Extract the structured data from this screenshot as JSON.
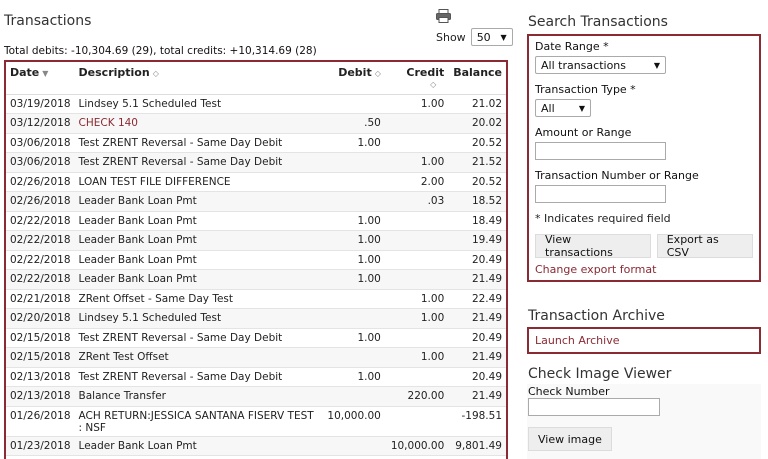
{
  "transactions": {
    "title": "Transactions",
    "show_label": "Show",
    "show_value": "50",
    "totals": "Total debits: -10,304.69 (29), total credits: +10,314.69 (28)",
    "headers": {
      "date": "Date",
      "description": "Description",
      "debit": "Debit",
      "credit": "Credit",
      "balance": "Balance"
    },
    "rows": [
      {
        "date": "03/19/2018",
        "description": "Lindsey 5.1 Scheduled Test",
        "debit": "",
        "credit": "1.00",
        "balance": "21.02"
      },
      {
        "date": "03/12/2018",
        "description": "CHECK 140",
        "debit": ".50",
        "credit": "",
        "balance": "20.02"
      },
      {
        "date": "03/06/2018",
        "description": "Test ZRENT Reversal - Same Day Debit",
        "debit": "1.00",
        "credit": "",
        "balance": "20.52"
      },
      {
        "date": "03/06/2018",
        "description": "Test ZRENT Reversal - Same Day Debit",
        "debit": "",
        "credit": "1.00",
        "balance": "21.52"
      },
      {
        "date": "02/26/2018",
        "description": "LOAN TEST FILE DIFFERENCE",
        "debit": "",
        "credit": "2.00",
        "balance": "20.52"
      },
      {
        "date": "02/26/2018",
        "description": "Leader Bank Loan Pmt",
        "debit": "",
        "credit": ".03",
        "balance": "18.52"
      },
      {
        "date": "02/22/2018",
        "description": "Leader Bank Loan Pmt",
        "debit": "1.00",
        "credit": "",
        "balance": "18.49"
      },
      {
        "date": "02/22/2018",
        "description": "Leader Bank Loan Pmt",
        "debit": "1.00",
        "credit": "",
        "balance": "19.49"
      },
      {
        "date": "02/22/2018",
        "description": "Leader Bank Loan Pmt",
        "debit": "1.00",
        "credit": "",
        "balance": "20.49"
      },
      {
        "date": "02/22/2018",
        "description": "Leader Bank Loan Pmt",
        "debit": "1.00",
        "credit": "",
        "balance": "21.49"
      },
      {
        "date": "02/21/2018",
        "description": "ZRent Offset - Same Day Test",
        "debit": "",
        "credit": "1.00",
        "balance": "22.49"
      },
      {
        "date": "02/20/2018",
        "description": "Lindsey 5.1 Scheduled Test",
        "debit": "",
        "credit": "1.00",
        "balance": "21.49"
      },
      {
        "date": "02/15/2018",
        "description": "Test ZRENT Reversal - Same Day Debit",
        "debit": "1.00",
        "credit": "",
        "balance": "20.49"
      },
      {
        "date": "02/15/2018",
        "description": "ZRent Test Offset",
        "debit": "",
        "credit": "1.00",
        "balance": "21.49"
      },
      {
        "date": "02/13/2018",
        "description": "Test ZRENT Reversal - Same Day Debit",
        "debit": "1.00",
        "credit": "",
        "balance": "20.49"
      },
      {
        "date": "02/13/2018",
        "description": "Balance Transfer",
        "debit": "",
        "credit": "220.00",
        "balance": "21.49"
      },
      {
        "date": "01/26/2018",
        "description": "ACH RETURN:JESSICA SANTANA FISERV TEST : NSF",
        "debit": "10,000.00",
        "credit": "",
        "balance": "-198.51"
      },
      {
        "date": "01/23/2018",
        "description": "Leader Bank Loan Pmt",
        "debit": "",
        "credit": "10,000.00",
        "balance": "9,801.49"
      }
    ]
  },
  "search": {
    "title": "Search Transactions",
    "date_range_label": "Date Range *",
    "date_range_value": "All transactions",
    "type_label": "Transaction Type *",
    "type_value": "All",
    "amount_label": "Amount or Range",
    "number_label": "Transaction Number or Range",
    "required_note": "* Indicates required field",
    "view_button": "View transactions",
    "export_button": "Export as CSV",
    "change_export_link": "Change export format"
  },
  "archive": {
    "title": "Transaction Archive",
    "launch_link": "Launch Archive"
  },
  "check_viewer": {
    "title": "Check Image Viewer",
    "number_label": "Check Number",
    "view_button": "View image"
  },
  "icons": {
    "print": "printer-icon",
    "sort": "sort-icon",
    "dropdown": "chevron-down-icon"
  },
  "colors": {
    "accent": "#8a2a33"
  }
}
